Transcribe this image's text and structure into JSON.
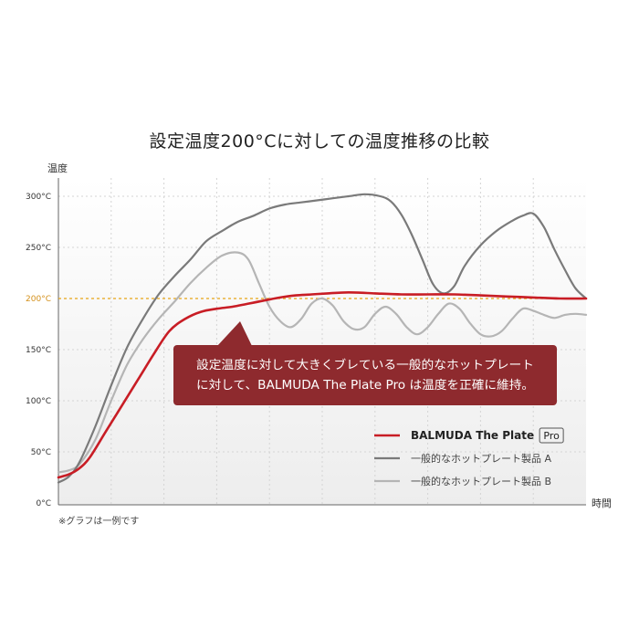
{
  "colors": {
    "balmuda": "#c81d25",
    "product_a": "#7a7a7a",
    "product_b": "#b5b5b5",
    "reference": "#e6a417",
    "callout": "#8e2a2e",
    "grid": "#d4d4d4"
  },
  "chart_data": {
    "type": "line",
    "title": "設定温度200°Cに対しての温度推移の比較",
    "ylabel": "温度",
    "xlabel": "時間",
    "ylim": [
      0,
      320
    ],
    "xlim": [
      0,
      100
    ],
    "y_ticks": [
      {
        "value": 0,
        "label": "0°C"
      },
      {
        "value": 50,
        "label": "50°C"
      },
      {
        "value": 100,
        "label": "100°C"
      },
      {
        "value": 150,
        "label": "150°C"
      },
      {
        "value": 200,
        "label": "200°C"
      },
      {
        "value": 250,
        "label": "250°C"
      },
      {
        "value": 300,
        "label": "300°C"
      }
    ],
    "reference_value": 200,
    "grid": true,
    "series": [
      {
        "name": "BALMUDA The Plate",
        "badge": "Pro",
        "color": "#c81d25",
        "x": [
          0,
          2,
          4,
          6,
          9,
          12,
          15,
          18,
          21,
          24,
          27,
          30,
          33,
          36,
          39,
          42,
          45,
          48,
          51,
          55,
          60,
          65,
          70,
          75,
          80,
          85,
          90,
          95,
          100
        ],
        "y": [
          25,
          28,
          34,
          45,
          70,
          95,
          120,
          145,
          168,
          180,
          187,
          190,
          192,
          195,
          198,
          201,
          203,
          204,
          205,
          206,
          205,
          204,
          204,
          204,
          203,
          202,
          201,
          200,
          200
        ]
      },
      {
        "name": "一般的なホットプレート製品 A",
        "color": "#7a7a7a",
        "x": [
          0,
          2,
          4,
          7,
          10,
          13,
          16,
          19,
          22,
          25,
          28,
          31,
          34,
          37,
          40,
          43,
          46,
          49,
          52,
          55,
          58,
          61,
          63,
          65,
          67,
          69,
          71,
          73,
          75,
          77,
          80,
          83,
          86,
          88,
          90,
          92,
          94,
          96,
          98,
          100
        ],
        "y": [
          20,
          26,
          40,
          75,
          115,
          152,
          180,
          204,
          222,
          238,
          256,
          266,
          275,
          281,
          288,
          292,
          294,
          296,
          298,
          300,
          302,
          300,
          295,
          282,
          262,
          238,
          214,
          205,
          212,
          232,
          252,
          266,
          276,
          281,
          283,
          270,
          248,
          228,
          210,
          200
        ]
      },
      {
        "name": "一般的なホットプレート製品 B",
        "color": "#b5b5b5",
        "x": [
          0,
          2,
          4,
          7,
          10,
          13,
          16,
          19,
          22,
          25,
          28,
          31,
          34,
          36,
          38,
          40,
          42,
          44,
          46,
          48,
          50,
          52,
          54,
          56,
          58,
          60,
          62,
          64,
          66,
          68,
          70,
          72,
          74,
          76,
          78,
          80,
          82,
          84,
          86,
          88,
          90,
          92,
          94,
          96,
          98,
          100
        ],
        "y": [
          30,
          32,
          38,
          62,
          100,
          135,
          160,
          180,
          197,
          215,
          230,
          242,
          245,
          238,
          215,
          192,
          178,
          172,
          180,
          195,
          200,
          193,
          178,
          170,
          172,
          185,
          192,
          185,
          172,
          165,
          172,
          185,
          195,
          190,
          176,
          165,
          163,
          168,
          180,
          190,
          188,
          184,
          181,
          184,
          185,
          184
        ]
      }
    ],
    "annotation": {
      "lines": [
        "設定温度に対して大きくブレている一般的なホットプレート",
        "に対して、BALMUDA The Plate Pro は温度を正確に維持。"
      ]
    },
    "footnote": "※グラフは一例です"
  }
}
